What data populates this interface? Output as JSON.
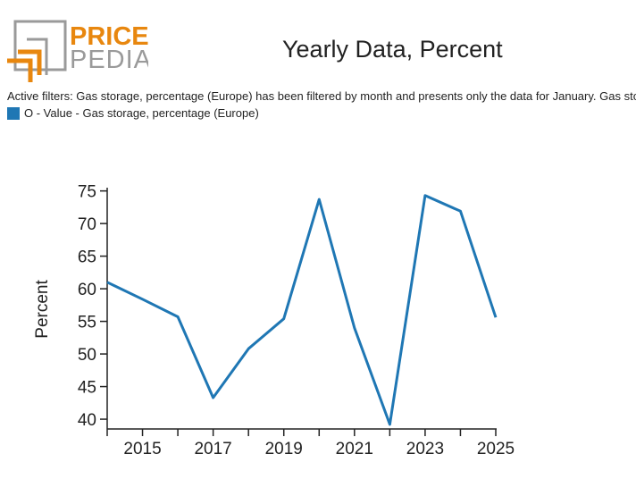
{
  "brand": {
    "word1": "PRICE",
    "word2": "PEDIA",
    "orange": "#e8870f",
    "gray": "#9a9a9a"
  },
  "filters_text": "Active filters: Gas storage, percentage (Europe) has been filtered by month and presents only the data for January. Gas storage",
  "legend": {
    "label": "O - Value - Gas storage, percentage (Europe)",
    "color": "#1f77b4"
  },
  "chart_data": {
    "type": "line",
    "title": "Yearly Data, Percent",
    "xlabel": "",
    "ylabel": "Percent",
    "x": [
      2014,
      2015,
      2016,
      2017,
      2018,
      2019,
      2020,
      2021,
      2022,
      2023,
      2024,
      2025
    ],
    "series": [
      {
        "name": "O - Value - Gas storage, percentage (Europe)",
        "values": [
          61.0,
          58.4,
          55.7,
          43.3,
          50.8,
          55.4,
          73.7,
          54.0,
          39.2,
          74.3,
          71.9,
          55.6
        ]
      }
    ],
    "xlim": [
      2014,
      2025
    ],
    "ylim": [
      38.5,
      75.5
    ],
    "xticks": [
      "2015",
      "2017",
      "2019",
      "2021",
      "2023",
      "2025"
    ],
    "yticks": [
      "40",
      "45",
      "50",
      "55",
      "60",
      "65",
      "70",
      "75"
    ],
    "grid": false,
    "line_color": "#1f77b4"
  }
}
